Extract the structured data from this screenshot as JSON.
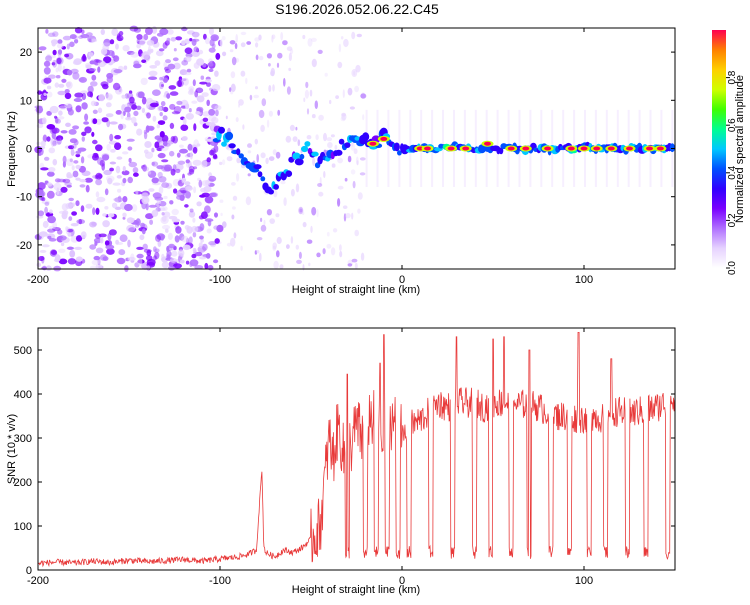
{
  "title": "S196.2026.052.06.22.C45",
  "chart_data": [
    {
      "type": "heatmap",
      "xlabel": "Height of straight line (km)",
      "ylabel": "Frequency (Hz)",
      "xlim": [
        -200,
        150
      ],
      "ylim": [
        -25,
        25
      ],
      "xticks": [
        -200,
        -100,
        0,
        100
      ],
      "yticks": [
        -20,
        -10,
        0,
        10,
        20
      ],
      "colorbar": {
        "label": "Normalized spectral amplitude",
        "range": [
          0,
          1
        ],
        "ticks": [
          "0.0",
          "0.2",
          "0.4",
          "0.6",
          "0.8"
        ],
        "colors": [
          "#ffffff",
          "#e6d2ff",
          "#b070ff",
          "#7a00ff",
          "#3000ff",
          "#0050ff",
          "#00c8ff",
          "#00ff90",
          "#40ff00",
          "#d0ff00",
          "#ffd000",
          "#ff8000",
          "#ff0050"
        ]
      },
      "signal_track": [
        {
          "x": -102,
          "f": 3
        },
        {
          "x": -95,
          "f": 2
        },
        {
          "x": -90,
          "f": 0
        },
        {
          "x": -85,
          "f": -2
        },
        {
          "x": -78,
          "f": -6
        },
        {
          "x": -72,
          "f": -8
        },
        {
          "x": -65,
          "f": -5
        },
        {
          "x": -58,
          "f": -2
        },
        {
          "x": -52,
          "f": 0
        },
        {
          "x": -45,
          "f": -3
        },
        {
          "x": -38,
          "f": -1
        },
        {
          "x": -30,
          "f": 1
        },
        {
          "x": -20,
          "f": 1
        },
        {
          "x": -10,
          "f": 2
        },
        {
          "x": 0,
          "f": 0
        },
        {
          "x": 20,
          "f": 0
        },
        {
          "x": 50,
          "f": 0
        },
        {
          "x": 90,
          "f": 0
        },
        {
          "x": 120,
          "f": 0
        },
        {
          "x": 150,
          "f": 0
        }
      ],
      "hot_spots": [
        {
          "x": -16,
          "f": 1
        },
        {
          "x": -10,
          "f": 2
        },
        {
          "x": 10,
          "f": 0
        },
        {
          "x": 14,
          "f": 0
        },
        {
          "x": 27,
          "f": 0
        },
        {
          "x": 35,
          "f": 0
        },
        {
          "x": 47,
          "f": 1
        },
        {
          "x": 60,
          "f": 0
        },
        {
          "x": 68,
          "f": 0
        },
        {
          "x": 80,
          "f": 0
        },
        {
          "x": 93,
          "f": 0
        },
        {
          "x": 100,
          "f": 0
        },
        {
          "x": 107,
          "f": 0
        },
        {
          "x": 115,
          "f": 0
        },
        {
          "x": 125,
          "f": 0
        },
        {
          "x": 136,
          "f": 0
        },
        {
          "x": 142,
          "f": 0
        }
      ]
    },
    {
      "type": "line",
      "xlabel": "Height of straight line (km)",
      "ylabel": "SNR (10 * v/v)",
      "xlim": [
        -200,
        150
      ],
      "ylim": [
        0,
        550
      ],
      "xticks": [
        -200,
        -100,
        0,
        100
      ],
      "yticks": [
        0,
        100,
        200,
        300,
        400,
        500
      ],
      "color": "#e83a3a",
      "series": [
        {
          "name": "SNR",
          "x": [
            -200,
            -190,
            -180,
            -170,
            -160,
            -150,
            -140,
            -130,
            -120,
            -110,
            -100,
            -90,
            -85,
            -80,
            -77,
            -76,
            -75,
            -70,
            -65,
            -60,
            -55,
            -50,
            -45,
            -42,
            -40,
            -38,
            -35,
            -32,
            -30,
            -28,
            -25,
            -22,
            -20,
            -18,
            -15,
            -12,
            -10,
            -8,
            -5,
            -2,
            0,
            5,
            10,
            15,
            20,
            25,
            30,
            35,
            40,
            45,
            50,
            55,
            60,
            65,
            70,
            75,
            80,
            85,
            90,
            95,
            100,
            105,
            110,
            115,
            120,
            125,
            130,
            135,
            140,
            145,
            150
          ],
          "y": [
            15,
            18,
            16,
            20,
            17,
            22,
            19,
            21,
            24,
            20,
            25,
            30,
            35,
            45,
            230,
            60,
            40,
            30,
            45,
            40,
            50,
            70,
            100,
            220,
            300,
            250,
            330,
            260,
            300,
            280,
            330,
            300,
            300,
            350,
            340,
            310,
            300,
            340,
            340,
            330,
            300,
            330,
            340,
            360,
            380,
            370,
            380,
            380,
            380,
            370,
            380,
            380,
            380,
            375,
            380,
            370,
            360,
            350,
            350,
            345,
            345,
            350,
            345,
            360,
            360,
            355,
            360,
            365,
            370,
            380,
            380
          ]
        }
      ],
      "spikes": [
        {
          "x": -30,
          "y": 445
        },
        {
          "x": -12,
          "y": 470
        },
        {
          "x": -10,
          "y": 535
        },
        {
          "x": 30,
          "y": 530
        },
        {
          "x": 50,
          "y": 525
        },
        {
          "x": 56,
          "y": 530
        },
        {
          "x": 70,
          "y": 500
        },
        {
          "x": 97,
          "y": 540
        },
        {
          "x": 115,
          "y": 480
        }
      ],
      "dips": [
        -30,
        -20,
        -14,
        -8,
        -2,
        4,
        16,
        28,
        40,
        49,
        60,
        70,
        82,
        92,
        103,
        112,
        124,
        134,
        146
      ],
      "dip_floor": 25
    }
  ]
}
